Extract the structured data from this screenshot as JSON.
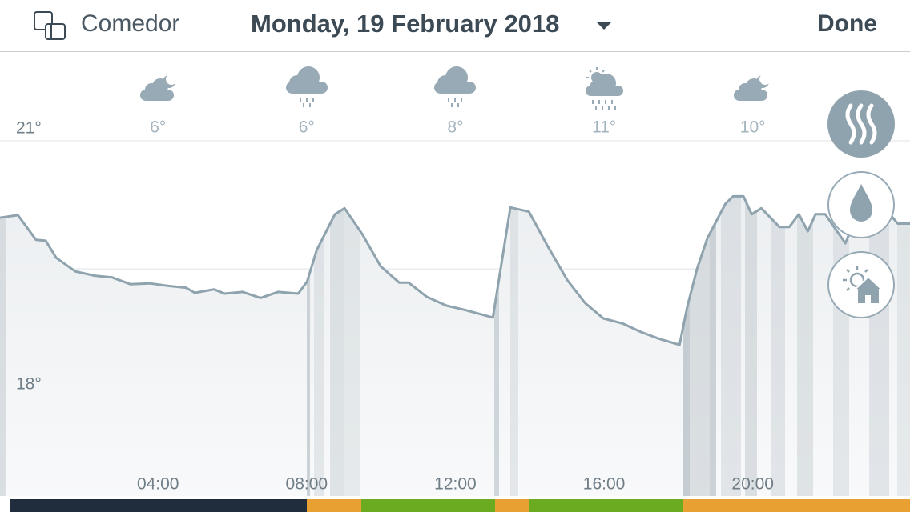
{
  "header": {
    "room": "Comedor",
    "date": "Monday, 19 February 2018",
    "done": "Done"
  },
  "forecast": [
    "6°",
    "6°",
    "8°",
    "11°",
    "10°"
  ],
  "chart_data": {
    "type": "line",
    "color": "#8fa3ae",
    "grid": true,
    "x": [
      -0.25,
      0.23,
      0.72,
      0.98,
      1.26,
      1.78,
      2.3,
      2.77,
      3.26,
      3.78,
      4.28,
      4.75,
      4.99,
      5.51,
      5.79,
      6.28,
      6.76,
      7.23,
      7.77,
      8.01,
      8.27,
      8.76,
      9.02,
      9.49,
      9.99,
      10.49,
      10.74,
      11.24,
      11.76,
      12.25,
      13.01,
      13.48,
      13.98,
      14.49,
      15.01,
      15.49,
      15.98,
      16.5,
      17.0,
      17.49,
      18.03,
      18.24,
      18.5,
      18.78,
      19.26,
      19.47,
      19.75,
      19.97,
      20.23,
      20.72,
      20.98,
      21.24,
      21.48,
      21.69,
      21.95,
      22.49,
      22.77,
      23.03,
      23.29,
      23.55,
      23.9,
      24.23
    ],
    "values": [
      20.1,
      20.13,
      19.84,
      19.83,
      19.63,
      19.47,
      19.42,
      19.4,
      19.32,
      19.33,
      19.3,
      19.28,
      19.22,
      19.26,
      19.21,
      19.23,
      19.16,
      19.23,
      19.21,
      19.35,
      19.72,
      20.14,
      20.21,
      19.91,
      19.53,
      19.34,
      19.34,
      19.17,
      19.07,
      19.02,
      18.93,
      20.22,
      20.17,
      19.76,
      19.37,
      19.1,
      18.92,
      18.86,
      18.76,
      18.68,
      18.61,
      19.06,
      19.5,
      19.86,
      20.26,
      20.35,
      20.35,
      20.14,
      20.21,
      19.99,
      19.99,
      20.14,
      19.94,
      20.14,
      20.14,
      19.8,
      20.1,
      20.26,
      20.31,
      20.21,
      20.03,
      20.03
    ],
    "xlim": [
      -0.25,
      24.23
    ],
    "ylim": [
      16.84,
      22.04
    ],
    "xticks": [
      {
        "value": 4,
        "label": "04:00"
      },
      {
        "value": 8,
        "label": "08:00"
      },
      {
        "value": 12,
        "label": "12:00"
      },
      {
        "value": 16,
        "label": "16:00"
      },
      {
        "value": 20,
        "label": "20:00"
      }
    ],
    "yticks": [
      {
        "value": 21,
        "label": "21°"
      },
      {
        "value": 19.5,
        "label": null
      },
      {
        "value": 18,
        "label": "18°"
      }
    ]
  }
}
